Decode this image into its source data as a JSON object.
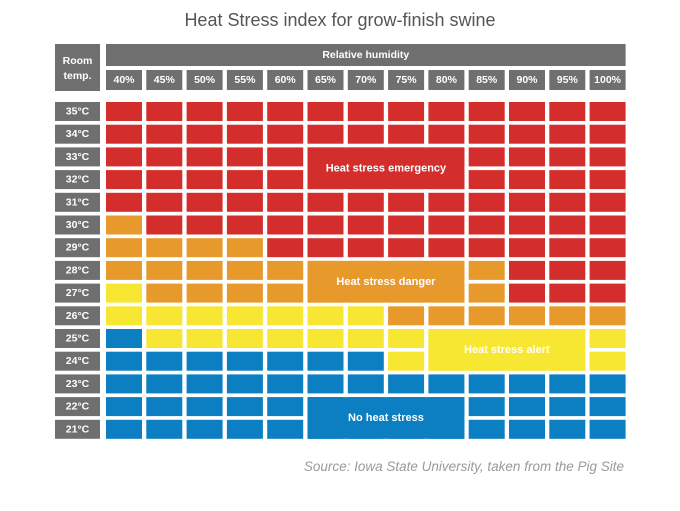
{
  "title": "Heat Stress index for grow-finish swine",
  "source": "Source: Iowa State University, taken from the Pig Site",
  "chart_data": {
    "type": "heatmap",
    "title": "Heat Stress index for grow-finish swine",
    "row_header": "Room temp.",
    "column_header": "Relative humidity",
    "columns": [
      "40%",
      "45%",
      "50%",
      "55%",
      "60%",
      "65%",
      "70%",
      "75%",
      "80%",
      "85%",
      "90%",
      "95%",
      "100%"
    ],
    "rows": [
      "35°C",
      "34°C",
      "33°C",
      "32°C",
      "31°C",
      "30°C",
      "29°C",
      "28°C",
      "27°C",
      "26°C",
      "25°C",
      "24°C",
      "23°C",
      "22°C",
      "21°C"
    ],
    "categories": [
      {
        "code": "N",
        "label": "No heat stress",
        "color": "#0b7fc1"
      },
      {
        "code": "A",
        "label": "Heat stress alert",
        "color": "#f7e733"
      },
      {
        "code": "D",
        "label": "Heat stress danger",
        "color": "#e8992b"
      },
      {
        "code": "E",
        "label": "Heat stress emergency",
        "color": "#d42e2c"
      }
    ],
    "cells": [
      [
        "E",
        "E",
        "E",
        "E",
        "E",
        "E",
        "E",
        "E",
        "E",
        "E",
        "E",
        "E",
        "E"
      ],
      [
        "E",
        "E",
        "E",
        "E",
        "E",
        "E",
        "E",
        "E",
        "E",
        "E",
        "E",
        "E",
        "E"
      ],
      [
        "E",
        "E",
        "E",
        "E",
        "E",
        "E",
        "E",
        "E",
        "E",
        "E",
        "E",
        "E",
        "E"
      ],
      [
        "E",
        "E",
        "E",
        "E",
        "E",
        "E",
        "E",
        "E",
        "E",
        "E",
        "E",
        "E",
        "E"
      ],
      [
        "E",
        "E",
        "E",
        "E",
        "E",
        "E",
        "E",
        "E",
        "E",
        "E",
        "E",
        "E",
        "E"
      ],
      [
        "D",
        "E",
        "E",
        "E",
        "E",
        "E",
        "E",
        "E",
        "E",
        "E",
        "E",
        "E",
        "E"
      ],
      [
        "D",
        "D",
        "D",
        "D",
        "E",
        "E",
        "E",
        "E",
        "E",
        "E",
        "E",
        "E",
        "E"
      ],
      [
        "D",
        "D",
        "D",
        "D",
        "D",
        "D",
        "D",
        "D",
        "D",
        "D",
        "E",
        "E",
        "E"
      ],
      [
        "A",
        "D",
        "D",
        "D",
        "D",
        "D",
        "D",
        "D",
        "D",
        "D",
        "E",
        "E",
        "E"
      ],
      [
        "A",
        "A",
        "A",
        "A",
        "A",
        "A",
        "A",
        "D",
        "D",
        "D",
        "D",
        "D",
        "D"
      ],
      [
        "N",
        "A",
        "A",
        "A",
        "A",
        "A",
        "A",
        "A",
        "A",
        "A",
        "A",
        "A",
        "A"
      ],
      [
        "N",
        "N",
        "N",
        "N",
        "N",
        "N",
        "N",
        "A",
        "A",
        "A",
        "A",
        "A",
        "A"
      ],
      [
        "N",
        "N",
        "N",
        "N",
        "N",
        "N",
        "N",
        "N",
        "N",
        "N",
        "N",
        "N",
        "N"
      ],
      [
        "N",
        "N",
        "N",
        "N",
        "N",
        "N",
        "N",
        "N",
        "N",
        "N",
        "N",
        "N",
        "N"
      ],
      [
        "N",
        "N",
        "N",
        "N",
        "N",
        "N",
        "N",
        "N",
        "N",
        "N",
        "N",
        "N",
        "N"
      ]
    ]
  }
}
